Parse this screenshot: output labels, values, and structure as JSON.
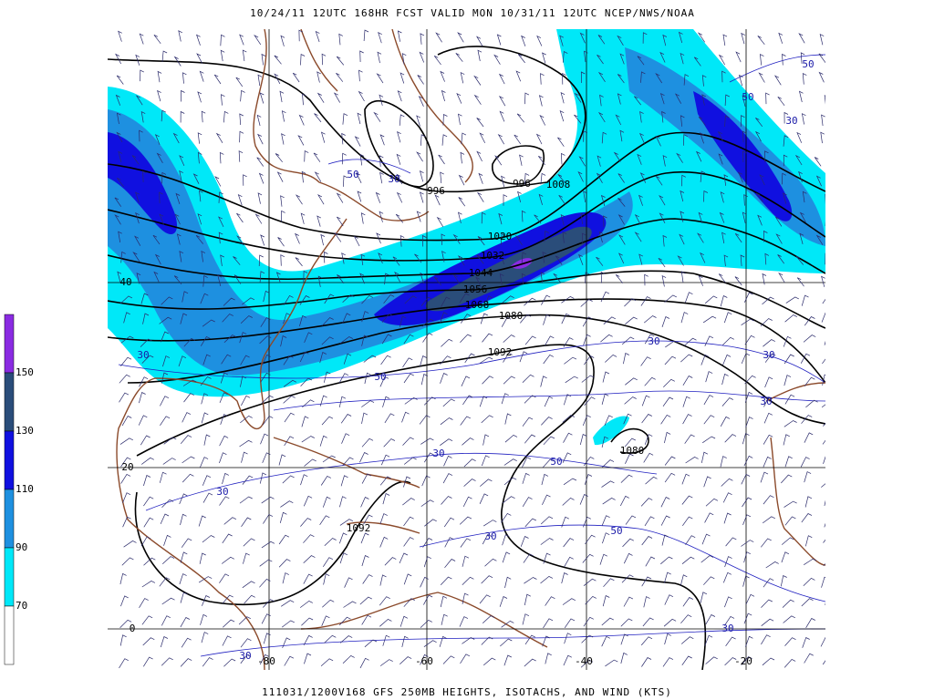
{
  "header": {
    "title": "10/24/11 12UTC  168HR  FCST VALID MON 10/31/11 12UTC  NCEP/NWS/NOAA"
  },
  "footer": {
    "caption": "111031/1200V168 GFS 250MB HEIGHTS, ISOTACHS, AND WIND (KTS)"
  },
  "colorbar": {
    "levels": [
      {
        "label": "150",
        "color": "#2a4d7a"
      },
      {
        "label": "130",
        "color": "#1010e0"
      },
      {
        "label": "110",
        "color": "#1e90e0"
      },
      {
        "label": "90",
        "color": "#00e8f8"
      },
      {
        "label": "70",
        "color": "#ffffff"
      }
    ],
    "top_color": "#8a2be2"
  },
  "map": {
    "lat_labels": [
      "40",
      "20",
      "0"
    ],
    "lon_labels": [
      "-80",
      "-60",
      "-40",
      "-20"
    ],
    "height_labels": [
      "996",
      "996",
      "1008",
      "1020",
      "1032",
      "1044",
      "1056",
      "1068",
      "1080",
      "1092",
      "1080",
      "1092"
    ],
    "isotach_labels": [
      "50",
      "30",
      "50",
      "50",
      "30",
      "30",
      "50",
      "30",
      "30",
      "30",
      "30",
      "50",
      "30",
      "30",
      "50",
      "30",
      "30"
    ]
  }
}
